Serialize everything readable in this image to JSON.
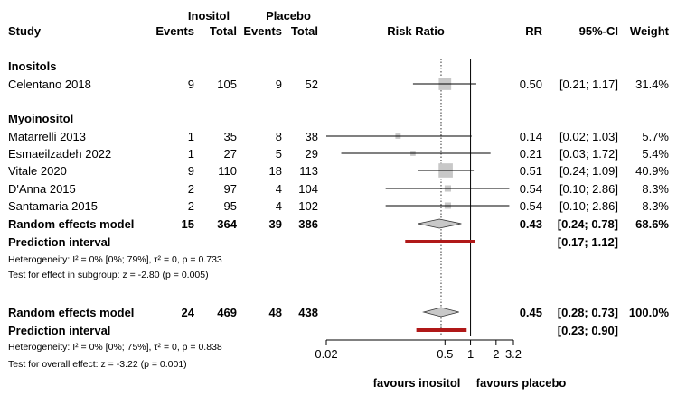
{
  "headers": {
    "group_inositol": "Inositol",
    "group_placebo": "Placebo",
    "study": "Study",
    "events": "Events",
    "total": "Total",
    "risk_ratio": "Risk Ratio",
    "rr": "RR",
    "ci": "95%-CI",
    "weight": "Weight"
  },
  "subgroup1": {
    "label": "Inositols",
    "row": {
      "study": "Celentano 2018",
      "e1": "9",
      "n1": "105",
      "e2": "9",
      "n2": "52",
      "rr": "0.50",
      "ci": "[0.21; 1.17]",
      "w": "31.4%"
    }
  },
  "subgroup2": {
    "label": "Myoinositol",
    "rows": [
      {
        "study": "Matarrelli 2013",
        "e1": "1",
        "n1": "35",
        "e2": "8",
        "n2": "38",
        "rr": "0.14",
        "ci": "[0.02; 1.03]",
        "w": "5.7%"
      },
      {
        "study": "Esmaeilzadeh 2022",
        "e1": "1",
        "n1": "27",
        "e2": "5",
        "n2": "29",
        "rr": "0.21",
        "ci": "[0.03; 1.72]",
        "w": "5.4%"
      },
      {
        "study": "Vitale 2020",
        "e1": "9",
        "n1": "110",
        "e2": "18",
        "n2": "113",
        "rr": "0.51",
        "ci": "[0.24; 1.09]",
        "w": "40.9%"
      },
      {
        "study": "D'Anna 2015",
        "e1": "2",
        "n1": "97",
        "e2": "4",
        "n2": "104",
        "rr": "0.54",
        "ci": "[0.10; 2.86]",
        "w": "8.3%"
      },
      {
        "study": "Santamaria 2015",
        "e1": "2",
        "n1": "95",
        "e2": "4",
        "n2": "102",
        "rr": "0.54",
        "ci": "[0.10; 2.86]",
        "w": "8.3%"
      }
    ],
    "random": {
      "label": "Random effects model",
      "e1": "15",
      "n1": "364",
      "e2": "39",
      "n2": "386",
      "rr": "0.43",
      "ci": "[0.24; 0.78]",
      "w": "68.6%"
    },
    "prediction": {
      "label": "Prediction interval",
      "ci": "[0.17; 1.12]"
    },
    "heterogeneity": "Heterogeneity: I² = 0% [0%; 79%], τ² = 0, p = 0.733",
    "test_effect": "Test for effect in subgroup: z = -2.80 (p = 0.005)"
  },
  "overall": {
    "random": {
      "label": "Random effects model",
      "e1": "24",
      "n1": "469",
      "e2": "48",
      "n2": "438",
      "rr": "0.45",
      "ci": "[0.28; 0.73]",
      "w": "100.0%"
    },
    "prediction": {
      "label": "Prediction interval",
      "ci": "[0.23; 0.90]"
    },
    "heterogeneity": "Heterogeneity: I² = 0% [0%; 75%], τ² = 0, p = 0.838",
    "test_effect": "Test for overall effect: z = -3.22 (p = 0.001)"
  },
  "axis": {
    "favours_left": "favours inositol",
    "favours_right": "favours placebo"
  },
  "colors": {
    "square": "#c8c8c8",
    "diamond": "#c8c8c8",
    "prediction": "#b01818",
    "line": "#000000"
  },
  "chart_data": {
    "type": "forest",
    "scale": "log",
    "xlim": [
      0.02,
      3.2
    ],
    "ticks": [
      0.02,
      0.5,
      1,
      2,
      3.2
    ],
    "tick_labels": [
      "0.02",
      "0.5",
      "1",
      "2",
      "3.2"
    ],
    "null_value": 1,
    "studies": [
      {
        "name": "Celentano 2018",
        "rr": 0.5,
        "lo": 0.21,
        "hi": 1.17,
        "weight": 31.4
      },
      {
        "name": "Matarrelli 2013",
        "rr": 0.14,
        "lo": 0.02,
        "hi": 1.03,
        "weight": 5.7
      },
      {
        "name": "Esmaeilzadeh 2022",
        "rr": 0.21,
        "lo": 0.03,
        "hi": 1.72,
        "weight": 5.4
      },
      {
        "name": "Vitale 2020",
        "rr": 0.51,
        "lo": 0.24,
        "hi": 1.09,
        "weight": 40.9
      },
      {
        "name": "D'Anna 2015",
        "rr": 0.54,
        "lo": 0.1,
        "hi": 2.86,
        "weight": 8.3
      },
      {
        "name": "Santamaria 2015",
        "rr": 0.54,
        "lo": 0.1,
        "hi": 2.86,
        "weight": 8.3
      }
    ],
    "subgroup_random": {
      "rr": 0.43,
      "lo": 0.24,
      "hi": 0.78
    },
    "subgroup_prediction": {
      "lo": 0.17,
      "hi": 1.12
    },
    "overall_random": {
      "rr": 0.45,
      "lo": 0.28,
      "hi": 0.73
    },
    "overall_prediction": {
      "lo": 0.23,
      "hi": 0.9
    },
    "overall_reference": 0.45
  }
}
